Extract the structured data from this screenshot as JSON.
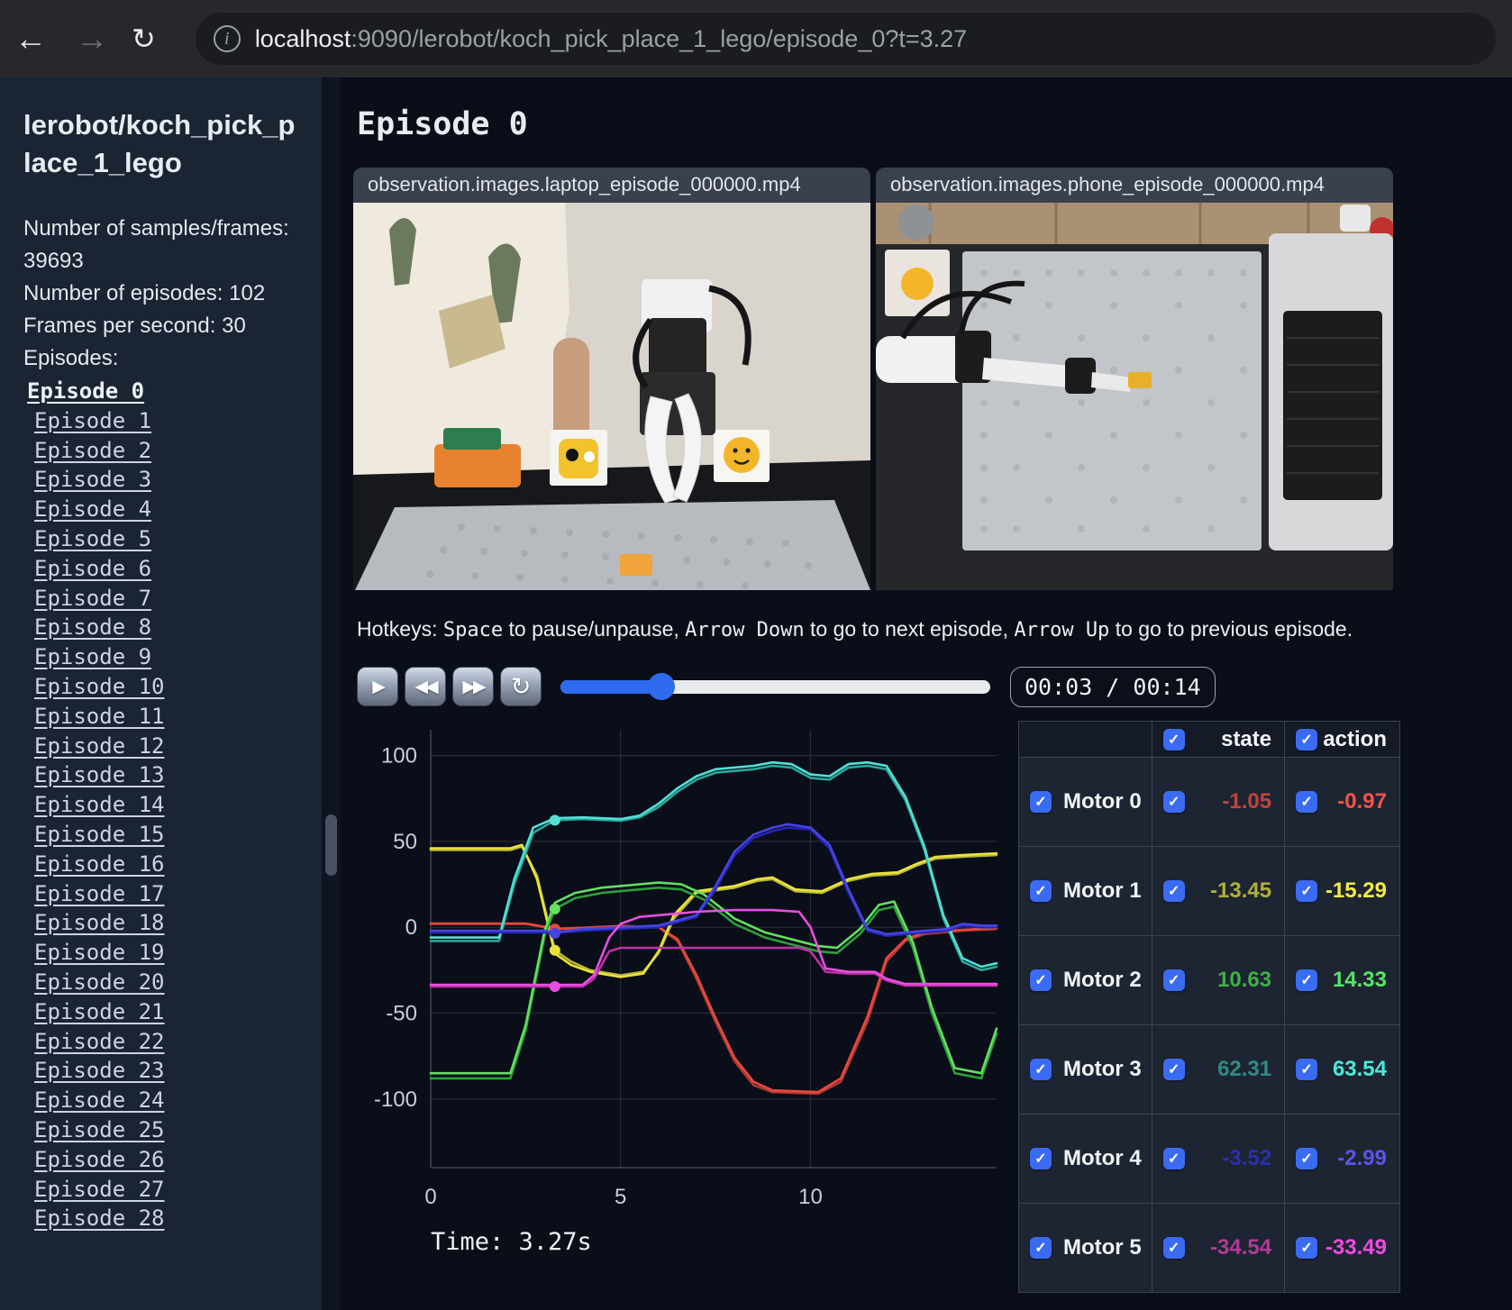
{
  "browser": {
    "url_host": "localhost",
    "url_rest": ":9090/lerobot/koch_pick_place_1_lego/episode_0?t=3.27",
    "back_icon": "←",
    "forward_icon": "→",
    "reload_icon": "↻",
    "info_icon": "i"
  },
  "sidebar": {
    "title": "lerobot/koch_pick_place_1_lego",
    "stats": [
      "Number of samples/frames: 39693",
      "Number of episodes: 102",
      "Frames per second: 30"
    ],
    "episodes_label": "Episodes:",
    "active_episode": "Episode 0",
    "episodes": [
      "Episode 0",
      "Episode 1",
      "Episode 2",
      "Episode 3",
      "Episode 4",
      "Episode 5",
      "Episode 6",
      "Episode 7",
      "Episode 8",
      "Episode 9",
      "Episode 10",
      "Episode 11",
      "Episode 12",
      "Episode 13",
      "Episode 14",
      "Episode 15",
      "Episode 16",
      "Episode 17",
      "Episode 18",
      "Episode 19",
      "Episode 20",
      "Episode 21",
      "Episode 22",
      "Episode 23",
      "Episode 24",
      "Episode 25",
      "Episode 26",
      "Episode 27",
      "Episode 28"
    ]
  },
  "main": {
    "heading": "Episode 0",
    "videos": [
      {
        "title": "observation.images.laptop_episode_000000.mp4"
      },
      {
        "title": "observation.images.phone_episode_000000.mp4"
      }
    ],
    "hotkeys_segments": [
      {
        "text": "Hotkeys: ",
        "mono": false
      },
      {
        "text": "Space",
        "mono": true
      },
      {
        "text": " to pause/unpause, ",
        "mono": false
      },
      {
        "text": "Arrow Down",
        "mono": true
      },
      {
        "text": " to go to next episode, ",
        "mono": false
      },
      {
        "text": "Arrow Up",
        "mono": true
      },
      {
        "text": " to go to previous episode.",
        "mono": false
      }
    ],
    "controls": {
      "play_icon": "▶",
      "rewind_icon": "◀◀",
      "forward_icon": "▶▶",
      "loop_icon": "↻",
      "progress_pct": 23.5,
      "time_display": "00:03 / 00:14"
    },
    "time_label": "Time: 3.27s"
  },
  "table": {
    "state_header": "state",
    "action_header": "action",
    "rows": [
      {
        "label": "Motor 0",
        "state": "-1.05",
        "action": "-0.97",
        "state_color": "#c0443c",
        "action_color": "#f4534a"
      },
      {
        "label": "Motor 1",
        "state": "-13.45",
        "action": "-15.29",
        "state_color": "#b0af38",
        "action_color": "#f3ec44"
      },
      {
        "label": "Motor 2",
        "state": "10.63",
        "action": "14.33",
        "state_color": "#3fae47",
        "action_color": "#55e565"
      },
      {
        "label": "Motor 3",
        "state": "62.31",
        "action": "63.54",
        "state_color": "#2f8c80",
        "action_color": "#4ce8d8"
      },
      {
        "label": "Motor 4",
        "state": "-3.52",
        "action": "-2.99",
        "state_color": "#2a2fae",
        "action_color": "#5b54ea"
      },
      {
        "label": "Motor 5",
        "state": "-34.54",
        "action": "-33.49",
        "state_color": "#b13b97",
        "action_color": "#f04ae0"
      }
    ]
  },
  "chart_data": {
    "type": "line",
    "xlabel": "",
    "ylabel": "",
    "xlim": [
      0,
      14.9
    ],
    "ylim": [
      -140,
      115
    ],
    "x_ticks": [
      0,
      5,
      10
    ],
    "y_ticks": [
      100,
      50,
      0,
      -50,
      -100
    ],
    "grid": true,
    "legend_position": "none",
    "current_time": 3.27,
    "series": [
      {
        "name": "Motor 0",
        "state_color": "#a93a32",
        "action_color": "#e8483f",
        "state_at_t": -1.05,
        "x": [
          0,
          2.5,
          3,
          3.27,
          4,
          5,
          6,
          6.5,
          7,
          7.5,
          8,
          8.5,
          9,
          10.2,
          10.8,
          11.5,
          12,
          12.5,
          13,
          14,
          14.9
        ],
        "state": [
          2,
          2,
          0,
          -1.05,
          -0.5,
          0.5,
          0,
          -8,
          -30,
          -55,
          -78,
          -92,
          -96,
          -97,
          -90,
          -55,
          -20,
          -8,
          -4,
          -2,
          -1
        ],
        "action": [
          2.2,
          2.2,
          0.3,
          -0.97,
          -0.3,
          0.7,
          0.2,
          -7,
          -28,
          -53,
          -76,
          -90,
          -95,
          -96,
          -88,
          -52,
          -18,
          -7,
          -3,
          -1.5,
          -0.5
        ]
      },
      {
        "name": "Motor 1",
        "state_color": "#b8b736",
        "action_color": "#e9e23e",
        "state_at_t": -13.45,
        "x": [
          0,
          2.1,
          2.4,
          2.8,
          3.27,
          3.7,
          4.2,
          5,
          5.6,
          6,
          6.4,
          7,
          8,
          8.6,
          9,
          9.6,
          10.3,
          11,
          11.6,
          12.3,
          12.8,
          13.3,
          14,
          14.9
        ],
        "state": [
          45,
          45,
          47,
          30,
          -13.45,
          -20,
          -25,
          -28,
          -26,
          -15,
          5,
          20,
          23,
          27,
          28,
          21,
          20,
          27,
          30,
          31,
          36,
          40,
          41,
          42
        ],
        "action": [
          46,
          46,
          48,
          28,
          -15.29,
          -22,
          -26,
          -29,
          -27,
          -14,
          7,
          21,
          24,
          28,
          29,
          22,
          21,
          28,
          31,
          32,
          37,
          41,
          42,
          43
        ]
      },
      {
        "name": "Motor 2",
        "state_color": "#2f9e3a",
        "action_color": "#63e061",
        "state_at_t": 10.63,
        "x": [
          0,
          2.1,
          2.5,
          3,
          3.27,
          3.8,
          4.5,
          5.5,
          6,
          6.6,
          7.2,
          8,
          8.8,
          9.5,
          10.2,
          10.7,
          11.3,
          11.8,
          12.2,
          12.7,
          13.2,
          13.8,
          14.5,
          14.9
        ],
        "state": [
          -88,
          -88,
          -60,
          -5,
          10.63,
          17,
          20,
          22,
          23,
          22,
          16,
          2,
          -6,
          -10,
          -14,
          -15,
          -4,
          10,
          12,
          -12,
          -50,
          -85,
          -88,
          -62
        ],
        "action": [
          -85,
          -85,
          -57,
          -2,
          14.33,
          20,
          23,
          25,
          26,
          25,
          19,
          5,
          -3,
          -7,
          -11,
          -12,
          -1,
          13,
          15,
          -9,
          -47,
          -82,
          -85,
          -59
        ]
      },
      {
        "name": "Motor 3",
        "state_color": "#2aa79a",
        "action_color": "#52e0d5",
        "state_at_t": 62.31,
        "x": [
          0,
          1.8,
          2.2,
          2.7,
          3.27,
          4,
          5,
          5.5,
          6,
          6.5,
          7,
          7.5,
          8.5,
          9,
          9.5,
          10,
          10.5,
          11,
          11.5,
          12,
          12.5,
          13,
          13.5,
          14,
          14.5,
          14.9
        ],
        "state": [
          -8,
          -8,
          25,
          55,
          62.31,
          63,
          62,
          64,
          70,
          79,
          86,
          90,
          92,
          94,
          93,
          87,
          86,
          93,
          94,
          92,
          74,
          45,
          5,
          -20,
          -25,
          -23
        ],
        "action": [
          -6,
          -6,
          28,
          58,
          63.54,
          64,
          63,
          65,
          72,
          81,
          88,
          92,
          94,
          96,
          95,
          89,
          88,
          95,
          96,
          94,
          76,
          47,
          7,
          -18,
          -23,
          -21
        ]
      },
      {
        "name": "Motor 4",
        "state_color": "#2426b8",
        "action_color": "#4644e0",
        "state_at_t": -3.52,
        "x": [
          0,
          3,
          3.27,
          4,
          5,
          6,
          7,
          7.5,
          8,
          8.5,
          9,
          9.4,
          10,
          10.5,
          11,
          11.5,
          12,
          13,
          13.6,
          14,
          14.5,
          14.9
        ],
        "state": [
          -3,
          -3,
          -3.52,
          -2,
          -1,
          0,
          6,
          22,
          42,
          52,
          56,
          58,
          57,
          46,
          20,
          -2,
          -5,
          -3,
          -2,
          1,
          0,
          0
        ],
        "action": [
          -2,
          -2,
          -2.99,
          -1,
          0,
          1,
          7,
          24,
          44,
          54,
          58,
          60,
          58,
          48,
          22,
          -1,
          -4,
          -2,
          -1,
          2,
          1,
          1
        ]
      },
      {
        "name": "Motor 5",
        "state_color": "#c02fa8",
        "action_color": "#e84fe0",
        "state_at_t": -34.54,
        "x": [
          0,
          4,
          4.3,
          4.7,
          5,
          5.5,
          6,
          7,
          8,
          9,
          9.7,
          10,
          10.4,
          11,
          11.7,
          12,
          12.5,
          13,
          14,
          14.9
        ],
        "state": [
          -34.54,
          -34.54,
          -30,
          -14,
          -12,
          -12,
          -12,
          -12,
          -12,
          -12,
          -12,
          -14,
          -26,
          -27,
          -27,
          -31,
          -34,
          -34,
          -34,
          -34
        ],
        "action": [
          -33.49,
          -33.49,
          -28,
          -6,
          2,
          6,
          7,
          9,
          10,
          10,
          9,
          0,
          -24,
          -26,
          -26,
          -30,
          -33,
          -33,
          -33,
          -33
        ]
      }
    ]
  }
}
